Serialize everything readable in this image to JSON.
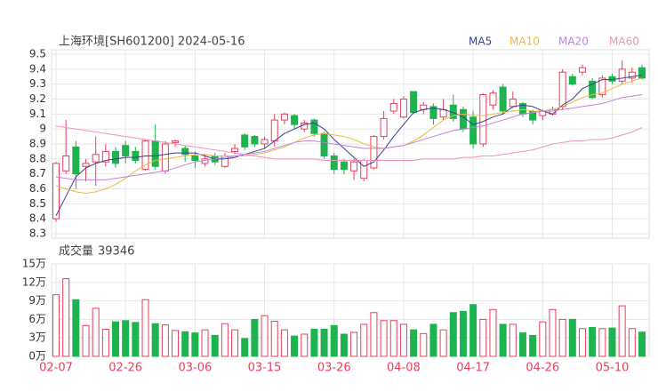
{
  "chart_data": [
    {
      "type": "candlestick",
      "title": "上海环境[SH601200] 2024-05-16",
      "open": [
        8.4,
        8.72,
        8.88,
        8.75,
        8.78,
        8.78,
        8.85,
        8.89,
        8.85,
        8.73,
        8.92,
        8.72,
        8.91,
        8.87,
        8.82,
        8.77,
        8.82,
        8.75,
        8.85,
        8.96,
        8.95,
        8.9,
        8.92,
        9.06,
        9.09,
        9.0,
        9.06,
        8.97,
        8.82,
        8.78,
        8.72,
        8.67,
        8.74,
        8.95,
        9.12,
        9.08,
        9.25,
        9.13,
        9.15,
        9.08,
        9.16,
        9.13,
        9.08,
        8.9,
        9.16,
        9.28,
        9.15,
        9.17,
        9.12,
        9.09,
        9.1,
        9.15,
        9.35,
        9.38,
        9.32,
        9.23,
        9.35,
        9.32,
        9.34,
        9.41
      ],
      "high": [
        8.78,
        9.06,
        8.92,
        8.8,
        8.95,
        8.9,
        8.88,
        8.92,
        8.88,
        8.93,
        9.03,
        8.92,
        8.93,
        8.89,
        8.85,
        8.83,
        8.84,
        8.84,
        8.9,
        8.97,
        8.96,
        8.95,
        9.1,
        9.11,
        9.1,
        9.06,
        9.07,
        8.98,
        8.84,
        8.8,
        8.8,
        8.8,
        8.96,
        9.12,
        9.2,
        9.22,
        9.25,
        9.18,
        9.17,
        9.2,
        9.23,
        9.15,
        9.12,
        9.24,
        9.26,
        9.3,
        9.25,
        9.18,
        9.13,
        9.13,
        9.15,
        9.4,
        9.37,
        9.43,
        9.34,
        9.36,
        9.37,
        9.46,
        9.41,
        9.43
      ],
      "low": [
        8.38,
        8.7,
        8.6,
        8.65,
        8.62,
        8.75,
        8.74,
        8.77,
        8.77,
        8.72,
        8.73,
        8.7,
        8.88,
        8.78,
        8.74,
        8.75,
        8.76,
        8.74,
        8.83,
        8.86,
        8.88,
        8.87,
        8.88,
        9.03,
        9.0,
        8.98,
        8.95,
        8.8,
        8.7,
        8.7,
        8.66,
        8.65,
        8.73,
        8.93,
        9.1,
        9.07,
        9.1,
        9.1,
        9.03,
        9.06,
        9.05,
        8.98,
        8.87,
        8.88,
        9.13,
        9.1,
        9.14,
        9.08,
        9.03,
        9.06,
        9.09,
        9.13,
        9.29,
        9.36,
        9.2,
        9.21,
        9.3,
        9.3,
        9.31,
        9.33
      ],
      "close": [
        8.77,
        8.82,
        8.7,
        8.77,
        8.83,
        8.85,
        8.77,
        8.82,
        8.79,
        8.92,
        8.75,
        8.9,
        8.92,
        8.83,
        8.79,
        8.8,
        8.78,
        8.82,
        8.87,
        8.88,
        8.9,
        8.93,
        9.06,
        9.1,
        9.03,
        9.04,
        8.97,
        8.82,
        8.73,
        8.73,
        8.78,
        8.79,
        8.95,
        9.07,
        9.17,
        9.2,
        9.11,
        9.16,
        9.07,
        9.13,
        9.07,
        9.0,
        8.9,
        9.23,
        9.24,
        9.12,
        9.2,
        9.1,
        9.06,
        9.12,
        9.13,
        9.38,
        9.3,
        9.41,
        9.21,
        9.34,
        9.32,
        9.4,
        9.38,
        9.34
      ],
      "up_color": "#e8405a",
      "down_color": "#1db34f",
      "series": [
        {
          "name": "MA5",
          "color": "#3a3f8f",
          "values": [
            8.42,
            8.55,
            8.68,
            8.74,
            8.77,
            8.79,
            8.8,
            8.81,
            8.81,
            8.82,
            8.82,
            8.83,
            8.84,
            8.84,
            8.84,
            8.82,
            8.8,
            8.8,
            8.81,
            8.83,
            8.85,
            8.87,
            8.92,
            8.97,
            9.0,
            9.03,
            9.04,
            9.0,
            8.93,
            8.87,
            8.81,
            8.75,
            8.78,
            8.86,
            8.95,
            9.03,
            9.11,
            9.13,
            9.14,
            9.13,
            9.11,
            9.08,
            9.03,
            9.05,
            9.08,
            9.1,
            9.15,
            9.16,
            9.15,
            9.12,
            9.1,
            9.16,
            9.2,
            9.27,
            9.3,
            9.33,
            9.33,
            9.34,
            9.35,
            9.36
          ]
        },
        {
          "name": "MA10",
          "color": "#f0b840",
          "values": [
            8.62,
            8.6,
            8.58,
            8.57,
            8.58,
            8.6,
            8.63,
            8.67,
            8.72,
            8.76,
            8.79,
            8.8,
            8.81,
            8.82,
            8.83,
            8.83,
            8.82,
            8.82,
            8.82,
            8.82,
            8.83,
            8.84,
            8.86,
            8.88,
            8.91,
            8.94,
            8.96,
            8.97,
            8.96,
            8.95,
            8.93,
            8.9,
            8.88,
            8.87,
            8.88,
            8.89,
            8.92,
            8.96,
            9.01,
            9.06,
            9.09,
            9.1,
            9.09,
            9.09,
            9.1,
            9.11,
            9.12,
            9.13,
            9.12,
            9.12,
            9.13,
            9.15,
            9.18,
            9.21,
            9.23,
            9.24,
            9.27,
            9.3,
            9.32,
            9.34
          ]
        },
        {
          "name": "MA20",
          "color": "#c080e0",
          "values": [
            8.68,
            8.67,
            8.66,
            8.66,
            8.66,
            8.66,
            8.67,
            8.68,
            8.69,
            8.7,
            8.71,
            8.72,
            8.74,
            8.76,
            8.78,
            8.79,
            8.8,
            8.81,
            8.82,
            8.83,
            8.84,
            8.85,
            8.87,
            8.89,
            8.91,
            8.92,
            8.92,
            8.91,
            8.9,
            8.89,
            8.88,
            8.87,
            8.87,
            8.87,
            8.88,
            8.89,
            8.91,
            8.93,
            8.95,
            8.97,
            8.99,
            9.0,
            9.01,
            9.02,
            9.04,
            9.06,
            9.08,
            9.1,
            9.11,
            9.12,
            9.12,
            9.13,
            9.14,
            9.15,
            9.16,
            9.17,
            9.19,
            9.21,
            9.22,
            9.23
          ]
        },
        {
          "name": "MA60",
          "color": "#f090c0",
          "values": [
            9.02,
            9.01,
            9.0,
            8.99,
            8.98,
            8.97,
            8.96,
            8.95,
            8.94,
            8.93,
            8.92,
            8.91,
            8.9,
            8.89,
            8.88,
            8.87,
            8.86,
            8.85,
            8.84,
            8.83,
            8.82,
            8.81,
            8.8,
            8.8,
            8.8,
            8.8,
            8.8,
            8.79,
            8.79,
            8.79,
            8.79,
            8.79,
            8.79,
            8.79,
            8.79,
            8.79,
            8.79,
            8.8,
            8.8,
            8.8,
            8.8,
            8.81,
            8.81,
            8.82,
            8.82,
            8.83,
            8.84,
            8.85,
            8.86,
            8.88,
            8.9,
            8.91,
            8.92,
            8.92,
            8.93,
            8.93,
            8.94,
            8.96,
            8.98,
            9.01
          ]
        }
      ],
      "ylim": [
        8.3,
        9.5
      ],
      "yticks": [
        8.3,
        8.4,
        8.5,
        8.6,
        8.7,
        8.8,
        8.9,
        9,
        9.1,
        9.2,
        9.3,
        9.4,
        9.5
      ],
      "grid": true
    },
    {
      "type": "bar",
      "title": "成交量",
      "categories": [
        "02-07",
        null,
        null,
        null,
        null,
        null,
        null,
        "02-26",
        null,
        null,
        null,
        null,
        null,
        null,
        "03-06",
        null,
        null,
        null,
        null,
        null,
        null,
        "03-15",
        null,
        null,
        null,
        null,
        null,
        null,
        "03-26",
        null,
        null,
        null,
        null,
        null,
        null,
        "04-08",
        null,
        null,
        null,
        null,
        null,
        null,
        "04-17",
        null,
        null,
        null,
        null,
        null,
        null,
        "04-26",
        null,
        null,
        null,
        null,
        null,
        null,
        "05-10",
        null,
        null,
        null
      ],
      "values": [
        100000,
        126000,
        92000,
        50000,
        78000,
        44000,
        56000,
        58000,
        55000,
        92000,
        53000,
        51000,
        42000,
        40000,
        38000,
        43000,
        34000,
        53000,
        43000,
        29000,
        60000,
        66000,
        57000,
        43000,
        33000,
        36000,
        44000,
        44000,
        50000,
        36000,
        39000,
        52000,
        71000,
        58000,
        58000,
        52000,
        43000,
        37000,
        52000,
        43000,
        71000,
        73000,
        84000,
        60000,
        76000,
        52000,
        52000,
        38000,
        34000,
        56000,
        76000,
        60000,
        60000,
        45000,
        47000,
        45000,
        46000,
        82000,
        45000,
        39346
      ],
      "ylim": [
        0,
        150000
      ],
      "yticks": [
        {
          "value": 0,
          "label": "0万"
        },
        {
          "value": 30000,
          "label": "3万"
        },
        {
          "value": 60000,
          "label": "6万"
        },
        {
          "value": 90000,
          "label": "9万"
        },
        {
          "value": 120000,
          "label": "12万"
        },
        {
          "value": 150000,
          "label": "15万"
        }
      ],
      "grid": true
    }
  ]
}
